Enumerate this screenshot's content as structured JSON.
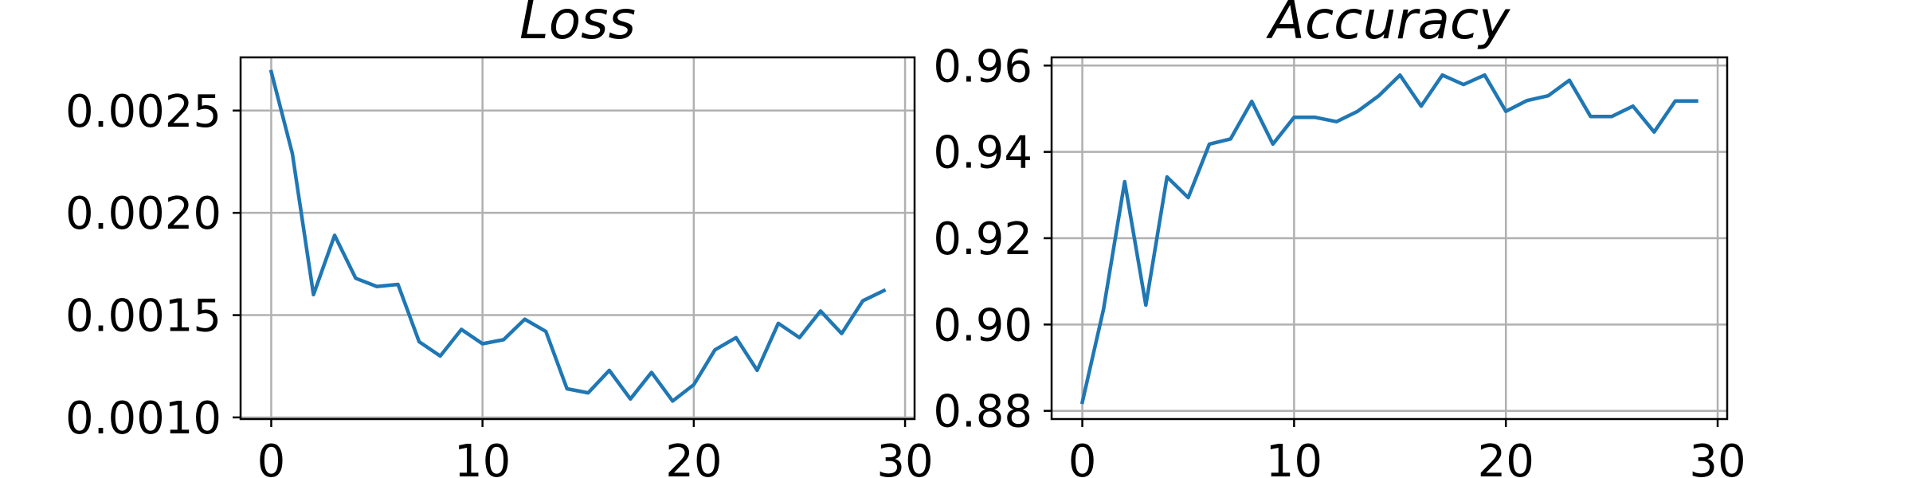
{
  "chart_data": [
    {
      "type": "line",
      "title": "Loss",
      "xlabel": "",
      "ylabel": "",
      "grid": true,
      "xlim": [
        -1.45,
        30.45
      ],
      "ylim": [
        0.000992,
        0.00276
      ],
      "xticks": [
        0,
        10,
        20,
        30
      ],
      "xtick_labels": [
        "0",
        "10",
        "20",
        "30"
      ],
      "yticks": [
        0.001,
        0.0015,
        0.002,
        0.0025
      ],
      "ytick_labels": [
        "0.0010",
        "0.0015",
        "0.0020",
        "0.0025"
      ],
      "series": [
        {
          "color": "#1f77b4",
          "x": [
            0,
            1,
            2,
            3,
            4,
            5,
            6,
            7,
            8,
            9,
            10,
            11,
            12,
            13,
            14,
            15,
            16,
            17,
            18,
            19,
            20,
            21,
            22,
            23,
            24,
            25,
            26,
            27,
            28,
            29
          ],
          "y": [
            0.00269,
            0.00229,
            0.0016,
            0.00189,
            0.00168,
            0.00164,
            0.00165,
            0.00137,
            0.0013,
            0.00143,
            0.00136,
            0.00138,
            0.00148,
            0.00142,
            0.00114,
            0.00112,
            0.00123,
            0.00109,
            0.00122,
            0.00108,
            0.00116,
            0.00133,
            0.00139,
            0.00123,
            0.00146,
            0.00139,
            0.00152,
            0.00141,
            0.00157,
            0.00162
          ]
        }
      ]
    },
    {
      "type": "line",
      "title": "Accuracy",
      "xlabel": "",
      "ylabel": "",
      "grid": true,
      "xlim": [
        -1.45,
        30.45
      ],
      "ylim": [
        0.8781,
        0.9619
      ],
      "xticks": [
        0,
        10,
        20,
        30
      ],
      "xtick_labels": [
        "0",
        "10",
        "20",
        "30"
      ],
      "yticks": [
        0.88,
        0.9,
        0.92,
        0.94,
        0.96
      ],
      "ytick_labels": [
        "0.88",
        "0.90",
        "0.92",
        "0.94",
        "0.96"
      ],
      "series": [
        {
          "color": "#1f77b4",
          "x": [
            0,
            1,
            2,
            3,
            4,
            5,
            6,
            7,
            8,
            9,
            10,
            11,
            12,
            13,
            14,
            15,
            16,
            17,
            18,
            19,
            20,
            21,
            22,
            23,
            24,
            25,
            26,
            27,
            28,
            29
          ],
          "y": [
            0.882,
            0.9035,
            0.9331,
            0.9045,
            0.9342,
            0.9294,
            0.9418,
            0.943,
            0.9517,
            0.9418,
            0.948,
            0.948,
            0.947,
            0.9494,
            0.953,
            0.9578,
            0.9506,
            0.9578,
            0.9556,
            0.9578,
            0.9494,
            0.9519,
            0.953,
            0.9566,
            0.9482,
            0.9482,
            0.9506,
            0.9446,
            0.9518,
            0.9518
          ]
        }
      ]
    }
  ]
}
